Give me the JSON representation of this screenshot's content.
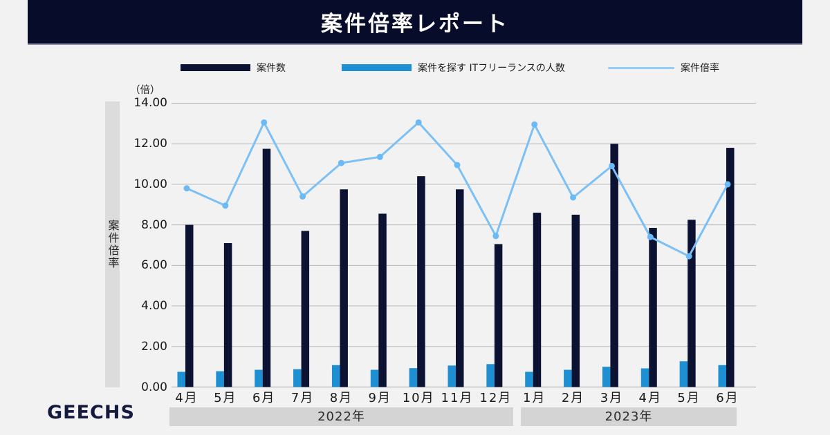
{
  "header": {
    "title": "案件倍率レポート"
  },
  "legend": [
    {
      "label": "案件数",
      "type": "bar",
      "color": "#0b1232"
    },
    {
      "label": "案件を探す ITフリーランスの人数",
      "type": "bar",
      "color": "#1d8fd2"
    },
    {
      "label": "案件倍率",
      "type": "line",
      "color": "#93cbf7"
    }
  ],
  "footer": {
    "logo": "GEECHS"
  },
  "chart_data": {
    "type": "bar+line",
    "title": "案件倍率レポート",
    "unit_label": "（倍）",
    "y_axis_title": "案件倍率",
    "categories": [
      "4月",
      "5月",
      "6月",
      "7月",
      "8月",
      "9月",
      "10月",
      "11月",
      "12月",
      "1月",
      "2月",
      "3月",
      "4月",
      "5月",
      "6月"
    ],
    "year_groups": [
      {
        "label": "2022年",
        "from_index": 0,
        "to_index": 8
      },
      {
        "label": "2023年",
        "from_index": 9,
        "to_index": 14
      }
    ],
    "series": [
      {
        "name": "案件数",
        "type": "bar",
        "color": "#0b1232",
        "values": [
          8.0,
          7.1,
          11.75,
          7.7,
          9.75,
          8.55,
          10.4,
          9.75,
          7.05,
          8.6,
          8.5,
          12.0,
          7.85,
          8.25,
          11.8
        ]
      },
      {
        "name": "案件を探す ITフリーランスの人数",
        "type": "bar",
        "color": "#1d8fd2",
        "values": [
          0.75,
          0.78,
          0.85,
          0.88,
          1.08,
          0.85,
          0.93,
          1.06,
          1.13,
          0.75,
          0.85,
          1.0,
          0.92,
          1.27,
          1.08
        ]
      },
      {
        "name": "案件倍率",
        "type": "line",
        "color": "#7cc0f5",
        "point_color": "#6cbaf4",
        "values": [
          9.8,
          8.95,
          13.05,
          9.4,
          11.05,
          11.35,
          13.05,
          10.95,
          7.45,
          12.95,
          9.35,
          10.9,
          7.4,
          6.45,
          10.0
        ]
      }
    ],
    "ylim": [
      0,
      14
    ],
    "ytick_step": 2,
    "yticks": [
      "14.00",
      "12.00",
      "10.00",
      "8.00",
      "6.00",
      "4.00",
      "2.00",
      "0.00"
    ],
    "grid": true,
    "legend_position": "top"
  }
}
